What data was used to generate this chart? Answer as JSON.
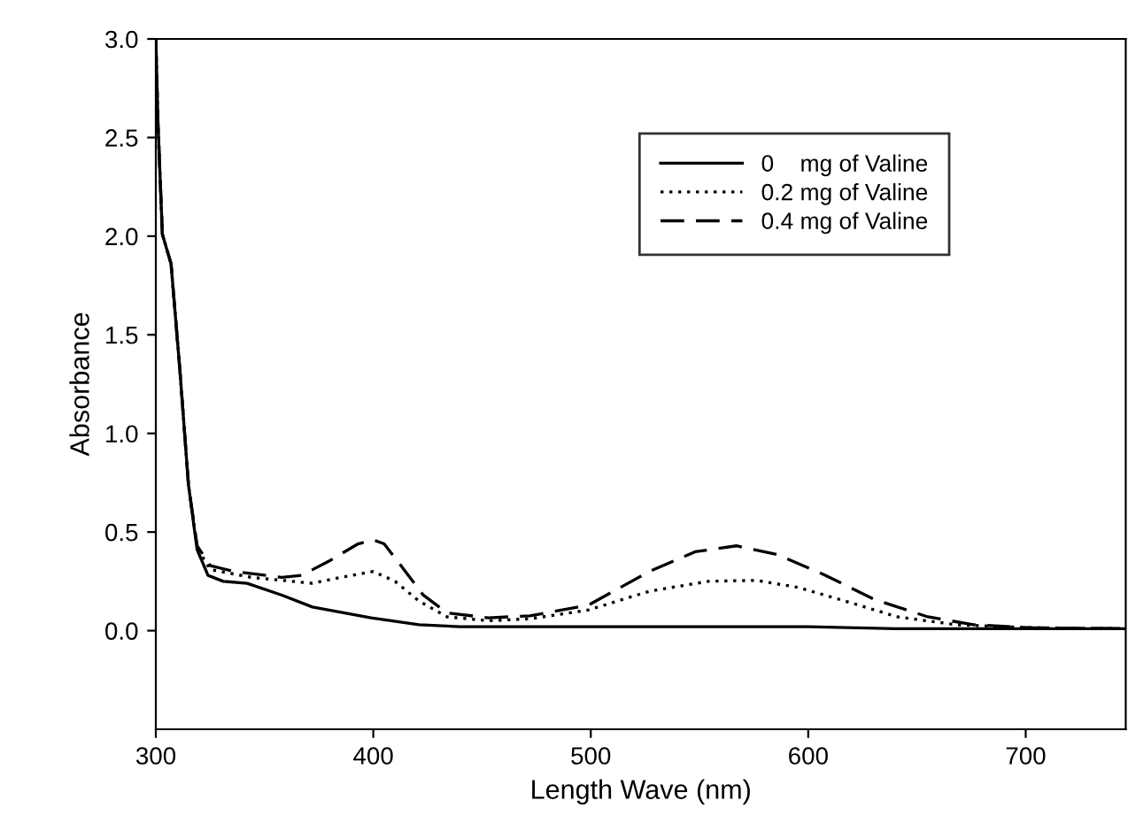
{
  "chart_data": {
    "type": "line",
    "xlabel": "Length Wave (nm)",
    "ylabel": "Absorbance",
    "xlim": [
      300,
      746
    ],
    "xticks": [
      300,
      400,
      500,
      600,
      700
    ],
    "ylim": [
      -0.5,
      3.0
    ],
    "yticks": [
      {
        "value": 0,
        "label": "0.0"
      },
      {
        "value": 0.5,
        "label": "0.5"
      },
      {
        "value": 1,
        "label": "1.0"
      },
      {
        "value": 1.5,
        "label": "1.5"
      },
      {
        "value": 2,
        "label": "2.0"
      },
      {
        "value": 2.5,
        "label": "2.5"
      },
      {
        "value": 3,
        "label": "3.0"
      }
    ],
    "grid": false,
    "legend": "top right",
    "marker": "none",
    "series": [
      {
        "name": "0    mg of Valine",
        "color": "#000000",
        "line_style": "solid",
        "x": [
          300,
          301,
          303,
          307,
          311,
          315,
          319,
          324,
          331,
          342,
          358,
          372,
          399,
          421,
          440,
          500,
          600,
          640,
          700,
          746
        ],
        "values": [
          3.0,
          2.57,
          2.01,
          1.86,
          1.33,
          0.74,
          0.41,
          0.28,
          0.25,
          0.24,
          0.18,
          0.12,
          0.065,
          0.03,
          0.02,
          0.02,
          0.02,
          0.01,
          0.01,
          0.01
        ]
      },
      {
        "name": "0.2 mg of Valine",
        "color": "#000000",
        "line_style": "dotted",
        "x": [
          300,
          301,
          303,
          307,
          311,
          315,
          319,
          325,
          344,
          372,
          385,
          400,
          410,
          421,
          434,
          453,
          472,
          499,
          527,
          554,
          576,
          595,
          617,
          641,
          668,
          702,
          746
        ],
        "values": [
          3.0,
          2.57,
          2.01,
          1.86,
          1.33,
          0.74,
          0.42,
          0.31,
          0.27,
          0.24,
          0.27,
          0.3,
          0.25,
          0.15,
          0.07,
          0.05,
          0.06,
          0.105,
          0.2,
          0.25,
          0.255,
          0.22,
          0.15,
          0.07,
          0.03,
          0.015,
          0.01
        ]
      },
      {
        "name": "0.4 mg of Valine",
        "color": "#000000",
        "line_style": "dashed",
        "x": [
          300,
          301,
          303,
          307,
          311,
          315,
          319,
          325,
          336,
          358,
          367,
          380,
          393,
          400,
          405,
          412,
          423,
          434,
          453,
          472,
          499,
          527,
          548,
          567,
          586,
          608,
          630,
          655,
          676,
          702,
          746
        ],
        "values": [
          3.0,
          2.57,
          2.01,
          1.86,
          1.33,
          0.74,
          0.43,
          0.33,
          0.3,
          0.27,
          0.28,
          0.355,
          0.44,
          0.46,
          0.44,
          0.34,
          0.18,
          0.09,
          0.065,
          0.075,
          0.13,
          0.3,
          0.4,
          0.43,
          0.385,
          0.28,
          0.16,
          0.07,
          0.03,
          0.015,
          0.01
        ]
      }
    ]
  }
}
